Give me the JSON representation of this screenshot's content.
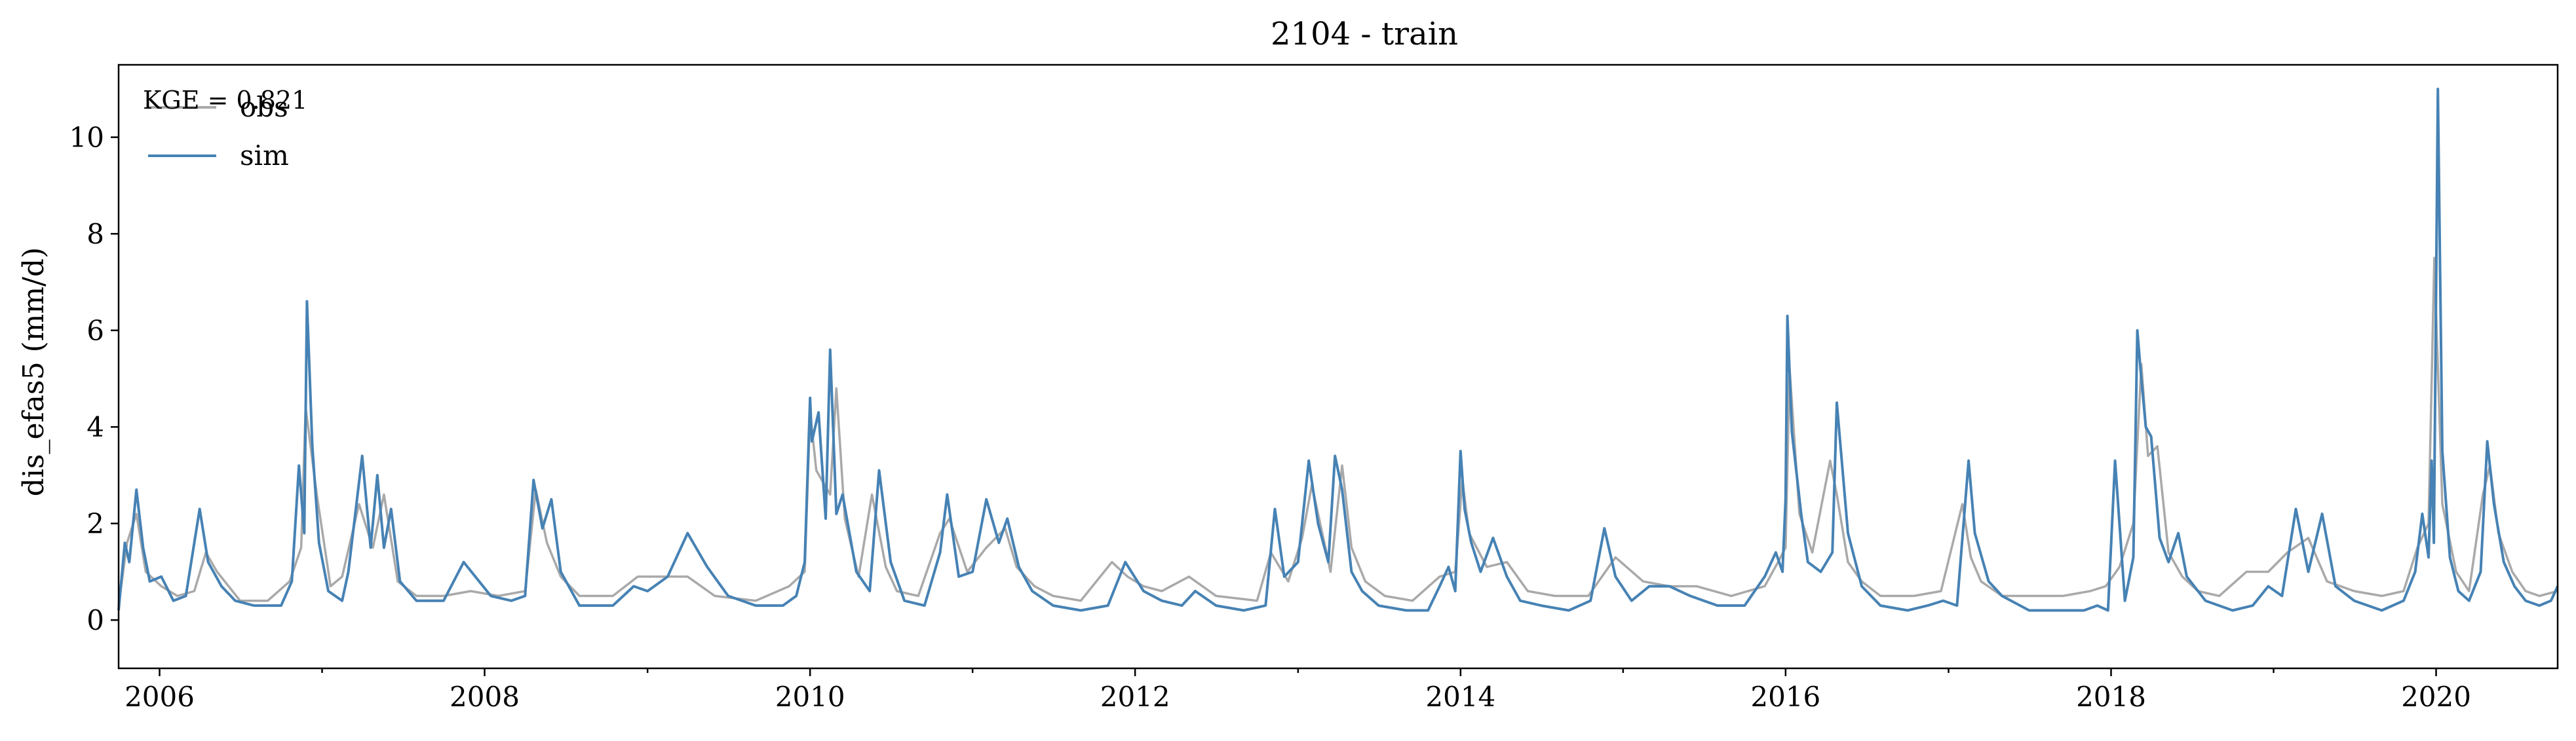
{
  "chart_data": {
    "type": "line",
    "title": "2104 - train",
    "xlabel": "",
    "ylabel": "dis_efas5 (mm/d)",
    "xlim": [
      "2005-10-01",
      "2020-09-30"
    ],
    "ylim": [
      -1.0,
      11.5
    ],
    "yticks": [
      0,
      2,
      4,
      6,
      8,
      10
    ],
    "xticks": [
      "2006",
      "2008",
      "2010",
      "2012",
      "2014",
      "2016",
      "2018",
      "2020"
    ],
    "grid": false,
    "legend": {
      "placement": "top-left",
      "entries": [
        "obs",
        "sim"
      ]
    },
    "annotation": "KGE = 0.821",
    "series": [
      {
        "name": "obs",
        "color": "#a9a9a9",
        "x": [
          "2005-10-01",
          "2005-10-20",
          "2005-11-10",
          "2005-12-01",
          "2006-01-05",
          "2006-02-10",
          "2006-03-20",
          "2006-04-15",
          "2006-05-10",
          "2006-07-01",
          "2006-09-01",
          "2006-10-20",
          "2006-11-15",
          "2006-11-25",
          "2006-12-20",
          "2007-01-20",
          "2007-02-15",
          "2007-03-25",
          "2007-04-25",
          "2007-05-20",
          "2007-06-20",
          "2007-08-01",
          "2007-10-01",
          "2007-12-01",
          "2008-02-01",
          "2008-04-01",
          "2008-04-25",
          "2008-05-20",
          "2008-06-20",
          "2008-08-01",
          "2008-10-15",
          "2008-12-10",
          "2009-02-10",
          "2009-04-01",
          "2009-06-01",
          "2009-09-01",
          "2009-11-15",
          "2009-12-20",
          "2010-01-01",
          "2010-01-15",
          "2010-02-15",
          "2010-03-01",
          "2010-03-20",
          "2010-04-20",
          "2010-05-20",
          "2010-06-20",
          "2010-07-15",
          "2010-09-01",
          "2010-10-20",
          "2010-11-10",
          "2010-12-20",
          "2011-02-01",
          "2011-03-15",
          "2011-04-10",
          "2011-05-20",
          "2011-07-01",
          "2011-09-01",
          "2011-11-10",
          "2011-12-15",
          "2012-01-20",
          "2012-03-01",
          "2012-05-01",
          "2012-07-01",
          "2012-10-01",
          "2012-11-01",
          "2012-12-10",
          "2013-01-10",
          "2013-02-01",
          "2013-03-15",
          "2013-04-10",
          "2013-05-01",
          "2013-06-01",
          "2013-07-15",
          "2013-09-15",
          "2013-11-15",
          "2013-12-20",
          "2014-01-05",
          "2014-01-20",
          "2014-03-01",
          "2014-04-15",
          "2014-06-01",
          "2014-08-01",
          "2014-10-15",
          "2014-12-15",
          "2015-02-15",
          "2015-04-15",
          "2015-06-15",
          "2015-09-01",
          "2015-11-15",
          "2015-12-15",
          "2016-01-01",
          "2016-01-10",
          "2016-02-01",
          "2016-03-01",
          "2016-04-10",
          "2016-04-25",
          "2016-05-20",
          "2016-06-20",
          "2016-08-01",
          "2016-10-15",
          "2016-12-15",
          "2017-02-01",
          "2017-02-20",
          "2017-03-15",
          "2017-05-01",
          "2017-07-01",
          "2017-09-15",
          "2017-11-15",
          "2017-12-20",
          "2018-01-20",
          "2018-02-20",
          "2018-03-10",
          "2018-03-25",
          "2018-04-15",
          "2018-05-10",
          "2018-06-10",
          "2018-07-15",
          "2018-09-01",
          "2018-11-01",
          "2018-12-20",
          "2019-02-01",
          "2019-03-20",
          "2019-05-01",
          "2019-07-01",
          "2019-09-01",
          "2019-10-20",
          "2019-11-20",
          "2019-12-15",
          "2019-12-28",
          "2020-01-15",
          "2020-02-15",
          "2020-03-15",
          "2020-04-15",
          "2020-05-01",
          "2020-05-20",
          "2020-06-20",
          "2020-07-20",
          "2020-08-20",
          "2020-09-30"
        ],
        "y": [
          0.3,
          1.6,
          2.2,
          1.0,
          0.7,
          0.5,
          0.6,
          1.4,
          1.0,
          0.4,
          0.4,
          0.8,
          1.5,
          4.4,
          2.6,
          0.7,
          0.9,
          2.4,
          1.5,
          2.6,
          0.8,
          0.5,
          0.5,
          0.6,
          0.5,
          0.6,
          2.7,
          1.6,
          0.9,
          0.5,
          0.5,
          0.9,
          0.9,
          0.9,
          0.5,
          0.4,
          0.7,
          1.0,
          4.3,
          3.1,
          2.6,
          4.8,
          2.1,
          0.9,
          2.6,
          1.1,
          0.6,
          0.5,
          1.8,
          2.1,
          1.0,
          1.5,
          1.9,
          1.1,
          0.7,
          0.5,
          0.4,
          1.2,
          0.9,
          0.7,
          0.6,
          0.9,
          0.5,
          0.4,
          1.4,
          0.8,
          1.7,
          2.8,
          1.0,
          3.2,
          1.5,
          0.8,
          0.5,
          0.4,
          0.9,
          1.0,
          2.9,
          1.8,
          1.1,
          1.2,
          0.6,
          0.5,
          0.5,
          1.3,
          0.8,
          0.7,
          0.7,
          0.5,
          0.7,
          1.2,
          1.5,
          5.2,
          2.2,
          1.4,
          3.3,
          2.6,
          1.2,
          0.8,
          0.5,
          0.5,
          0.6,
          2.4,
          1.3,
          0.8,
          0.5,
          0.5,
          0.5,
          0.6,
          0.7,
          1.1,
          2.0,
          5.3,
          3.4,
          3.6,
          1.4,
          0.9,
          0.6,
          0.5,
          1.0,
          1.0,
          1.4,
          1.7,
          0.8,
          0.6,
          0.5,
          0.6,
          1.5,
          2.0,
          7.5,
          2.4,
          1.0,
          0.6,
          2.6,
          3.2,
          1.8,
          1.0,
          0.6,
          0.5,
          0.6
        ]
      },
      {
        "name": "sim",
        "color": "#4682b4",
        "x": [
          "2005-10-01",
          "2005-10-15",
          "2005-10-25",
          "2005-11-10",
          "2005-11-25",
          "2005-12-10",
          "2006-01-05",
          "2006-02-01",
          "2006-03-01",
          "2006-04-01",
          "2006-04-20",
          "2006-05-20",
          "2006-06-20",
          "2006-08-01",
          "2006-10-01",
          "2006-10-25",
          "2006-11-10",
          "2006-11-22",
          "2006-11-28",
          "2006-12-10",
          "2006-12-25",
          "2007-01-15",
          "2007-02-15",
          "2007-03-01",
          "2007-04-01",
          "2007-04-20",
          "2007-05-05",
          "2007-05-20",
          "2007-06-05",
          "2007-06-25",
          "2007-08-01",
          "2007-10-01",
          "2007-11-15",
          "2008-01-15",
          "2008-03-01",
          "2008-04-01",
          "2008-04-20",
          "2008-05-10",
          "2008-05-30",
          "2008-06-20",
          "2008-08-01",
          "2008-10-15",
          "2008-12-01",
          "2009-01-01",
          "2009-02-15",
          "2009-04-01",
          "2009-05-15",
          "2009-07-01",
          "2009-09-01",
          "2009-11-01",
          "2009-12-01",
          "2009-12-20",
          "2010-01-01",
          "2010-01-05",
          "2010-01-20",
          "2010-02-05",
          "2010-02-15",
          "2010-03-01",
          "2010-03-15",
          "2010-04-15",
          "2010-05-15",
          "2010-06-05",
          "2010-07-01",
          "2010-08-01",
          "2010-09-15",
          "2010-10-20",
          "2010-11-05",
          "2010-12-01",
          "2011-01-01",
          "2011-02-01",
          "2011-03-01",
          "2011-03-20",
          "2011-04-15",
          "2011-05-15",
          "2011-07-01",
          "2011-09-01",
          "2011-11-01",
          "2011-12-10",
          "2012-01-20",
          "2012-03-01",
          "2012-04-15",
          "2012-05-15",
          "2012-07-01",
          "2012-09-01",
          "2012-10-20",
          "2012-11-10",
          "2012-12-01",
          "2013-01-01",
          "2013-01-25",
          "2013-02-15",
          "2013-03-10",
          "2013-03-25",
          "2013-04-10",
          "2013-05-01",
          "2013-05-25",
          "2013-07-01",
          "2013-09-01",
          "2013-10-20",
          "2013-11-15",
          "2013-12-05",
          "2013-12-20",
          "2014-01-01",
          "2014-01-10",
          "2014-01-25",
          "2014-02-15",
          "2014-03-15",
          "2014-04-15",
          "2014-05-15",
          "2014-07-01",
          "2014-09-01",
          "2014-10-20",
          "2014-11-20",
          "2014-12-15",
          "2015-01-20",
          "2015-03-01",
          "2015-04-15",
          "2015-06-01",
          "2015-08-01",
          "2015-10-01",
          "2015-11-15",
          "2015-12-10",
          "2015-12-25",
          "2016-01-01",
          "2016-01-05",
          "2016-01-15",
          "2016-02-05",
          "2016-02-20",
          "2016-03-20",
          "2016-04-15",
          "2016-04-25",
          "2016-05-20",
          "2016-06-20",
          "2016-08-01",
          "2016-10-01",
          "2016-11-15",
          "2016-12-20",
          "2017-01-20",
          "2017-02-15",
          "2017-03-01",
          "2017-04-01",
          "2017-05-01",
          "2017-07-01",
          "2017-09-01",
          "2017-11-01",
          "2017-12-01",
          "2017-12-25",
          "2018-01-10",
          "2018-02-01",
          "2018-02-20",
          "2018-03-01",
          "2018-03-08",
          "2018-03-20",
          "2018-04-01",
          "2018-04-20",
          "2018-05-10",
          "2018-06-01",
          "2018-06-20",
          "2018-08-01",
          "2018-10-01",
          "2018-11-15",
          "2018-12-20",
          "2019-01-20",
          "2019-02-20",
          "2019-03-20",
          "2019-04-20",
          "2019-05-20",
          "2019-07-01",
          "2019-09-01",
          "2019-10-20",
          "2019-11-15",
          "2019-12-01",
          "2019-12-15",
          "2019-12-22",
          "2019-12-27",
          "2020-01-05",
          "2020-01-15",
          "2020-02-01",
          "2020-02-20",
          "2020-03-15",
          "2020-04-10",
          "2020-04-25",
          "2020-05-10",
          "2020-06-01",
          "2020-06-25",
          "2020-07-20",
          "2020-08-20",
          "2020-09-15",
          "2020-09-30"
        ],
        "y": [
          0.2,
          1.6,
          1.2,
          2.7,
          1.5,
          0.8,
          0.9,
          0.4,
          0.5,
          2.3,
          1.2,
          0.7,
          0.4,
          0.3,
          0.3,
          0.8,
          3.2,
          1.8,
          6.6,
          3.6,
          1.6,
          0.6,
          0.4,
          1.0,
          3.4,
          1.5,
          3.0,
          1.5,
          2.3,
          0.8,
          0.4,
          0.4,
          1.2,
          0.5,
          0.4,
          0.5,
          2.9,
          1.9,
          2.5,
          1.0,
          0.3,
          0.3,
          0.7,
          0.6,
          0.9,
          1.8,
          1.1,
          0.5,
          0.3,
          0.3,
          0.5,
          1.2,
          4.6,
          3.7,
          4.3,
          2.1,
          5.6,
          2.2,
          2.6,
          1.0,
          0.6,
          3.1,
          1.2,
          0.4,
          0.3,
          1.4,
          2.6,
          0.9,
          1.0,
          2.5,
          1.6,
          2.1,
          1.1,
          0.6,
          0.3,
          0.2,
          0.3,
          1.2,
          0.6,
          0.4,
          0.3,
          0.6,
          0.3,
          0.2,
          0.3,
          2.3,
          0.9,
          1.2,
          3.3,
          2.0,
          1.2,
          3.4,
          2.7,
          1.0,
          0.6,
          0.3,
          0.2,
          0.2,
          0.7,
          1.1,
          0.6,
          3.5,
          2.3,
          1.6,
          1.0,
          1.7,
          0.9,
          0.4,
          0.3,
          0.2,
          0.4,
          1.9,
          0.9,
          0.4,
          0.7,
          0.7,
          0.5,
          0.3,
          0.3,
          0.9,
          1.4,
          1.0,
          2.5,
          6.3,
          3.9,
          2.2,
          1.2,
          1.0,
          1.4,
          4.5,
          1.8,
          0.7,
          0.3,
          0.2,
          0.3,
          0.4,
          0.3,
          3.3,
          1.8,
          0.8,
          0.5,
          0.2,
          0.2,
          0.2,
          0.3,
          0.2,
          3.3,
          0.4,
          1.3,
          6.0,
          5.2,
          4.0,
          3.8,
          1.7,
          1.2,
          1.8,
          0.9,
          0.4,
          0.2,
          0.3,
          0.7,
          0.5,
          2.3,
          1.0,
          2.2,
          0.7,
          0.4,
          0.2,
          0.4,
          1.0,
          2.2,
          1.3,
          3.3,
          1.6,
          11.0,
          3.5,
          1.3,
          0.6,
          0.4,
          1.0,
          3.7,
          2.4,
          1.2,
          0.7,
          0.4,
          0.3,
          0.4,
          0.7
        ]
      }
    ]
  }
}
